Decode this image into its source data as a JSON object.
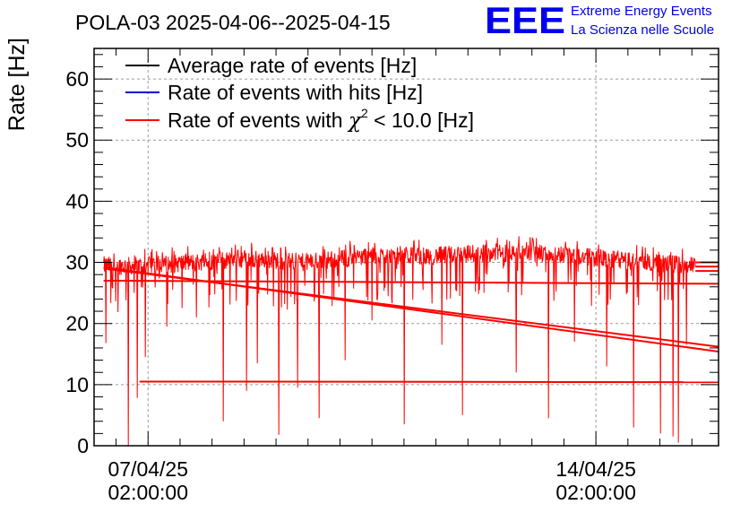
{
  "chart_data": {
    "type": "line",
    "title": "POLA-03 2025-04-06--2025-04-15",
    "ylabel": "Rate [Hz]",
    "xlabel": "",
    "ylim": [
      0,
      65
    ],
    "y_ticks": [
      0,
      10,
      20,
      30,
      40,
      50,
      60
    ],
    "x_range_days": [
      "2025-04-06 05:45",
      "2025-04-16 00:00"
    ],
    "x_ticks": [
      {
        "at": "2025-04-07 02:00:00",
        "date": "07/04/25",
        "time": "02:00:00"
      },
      {
        "at": "2025-04-14 02:00:00",
        "date": "14/04/25",
        "time": "02:00:00"
      }
    ],
    "grid": true,
    "legend_position": "top-left",
    "legend": [
      {
        "label": "Average rate of events [Hz]",
        "color": "#000000"
      },
      {
        "label": "Rate of events with hits [Hz]",
        "color": "#0000cc"
      },
      {
        "label_prefix": "Rate of events with ",
        "label_symbol": "χ",
        "label_sup": "2",
        "label_suffix": " < 10.0 [Hz]",
        "color": "#ff0000"
      }
    ],
    "series": [
      {
        "name": "Rate of events with χ2 < 10.0 [Hz]",
        "color": "#ff0000",
        "baseline_points": [
          [
            "2025-04-06 09:20",
            29.5
          ],
          [
            "2025-04-07 00:00",
            29.4
          ],
          [
            "2025-04-07 12:00",
            29.8
          ],
          [
            "2025-04-08 00:00",
            30.1
          ],
          [
            "2025-04-08 12:00",
            30.6
          ],
          [
            "2025-04-09 00:00",
            30.4
          ],
          [
            "2025-04-09 12:00",
            30.0
          ],
          [
            "2025-04-10 00:00",
            30.5
          ],
          [
            "2025-04-10 12:00",
            31.0
          ],
          [
            "2025-04-11 00:00",
            31.2
          ],
          [
            "2025-04-11 12:00",
            31.0
          ],
          [
            "2025-04-12 00:00",
            31.4
          ],
          [
            "2025-04-12 12:00",
            31.6
          ],
          [
            "2025-04-13 00:00",
            31.5
          ],
          [
            "2025-04-13 12:00",
            31.3
          ],
          [
            "2025-04-14 00:00",
            30.8
          ],
          [
            "2025-04-14 12:00",
            30.3
          ],
          [
            "2025-04-15 00:00",
            29.9
          ],
          [
            "2025-04-15 12:00",
            29.6
          ],
          [
            "2025-04-15 15:20",
            29.4
          ]
        ],
        "dips": [
          [
            "2025-04-06 10:00",
            16.8
          ],
          [
            "2025-04-06 18:30",
            0.0
          ],
          [
            "2025-04-06 22:00",
            7.8
          ],
          [
            "2025-04-07 01:00",
            14.5
          ],
          [
            "2025-04-07 09:00",
            19.5
          ],
          [
            "2025-04-07 20:00",
            21.0
          ],
          [
            "2025-04-08 06:00",
            4.0
          ],
          [
            "2025-04-08 15:00",
            9.0
          ],
          [
            "2025-04-08 19:00",
            13.5
          ],
          [
            "2025-04-09 03:00",
            1.8
          ],
          [
            "2025-04-09 10:00",
            9.5
          ],
          [
            "2025-04-09 18:00",
            4.5
          ],
          [
            "2025-04-10 04:00",
            14.0
          ],
          [
            "2025-04-10 14:00",
            20.5
          ],
          [
            "2025-04-11 02:00",
            3.5
          ],
          [
            "2025-04-11 16:00",
            16.5
          ],
          [
            "2025-04-12 00:00",
            5.0
          ],
          [
            "2025-04-12 20:00",
            12.0
          ],
          [
            "2025-04-13 08:00",
            4.5
          ],
          [
            "2025-04-13 18:00",
            17.0
          ],
          [
            "2025-04-14 06:00",
            13.0
          ],
          [
            "2025-04-14 16:00",
            3.0
          ],
          [
            "2025-04-15 02:00",
            2.0
          ],
          [
            "2025-04-15 07:00",
            1.5
          ],
          [
            "2025-04-15 09:00",
            0.5
          ],
          [
            "2025-04-15 12:00",
            16.5
          ]
        ],
        "segments": [
          [
            [
              "2025-04-06 09:20",
              29.0
            ],
            [
              "2025-04-16 00:00",
              16.2
            ]
          ],
          [
            [
              "2025-04-06 09:20",
              29.2
            ],
            [
              "2025-04-16 00:00",
              15.4
            ]
          ],
          [
            [
              "2025-04-06 22:50",
              10.5
            ],
            [
              "2025-04-16 00:00",
              10.4
            ]
          ],
          [
            [
              "2025-04-06 09:20",
              27.0
            ],
            [
              "2025-04-16 00:00",
              26.5
            ]
          ],
          [
            [
              "2025-04-15 15:20",
              28.6
            ],
            [
              "2025-04-16 00:00",
              28.6
            ]
          ],
          [
            [
              "2025-04-15 15:20",
              29.3
            ],
            [
              "2025-04-16 00:00",
              29.3
            ]
          ],
          [
            [
              "2025-04-15 15:20",
              30.0
            ],
            [
              "2025-04-16 00:00",
              30.0
            ]
          ]
        ]
      }
    ]
  },
  "logo": {
    "letters": "EEE",
    "line1": "Extreme Energy Events",
    "line2": "La Scienza nelle Scuole",
    "color": "#0000ee"
  }
}
